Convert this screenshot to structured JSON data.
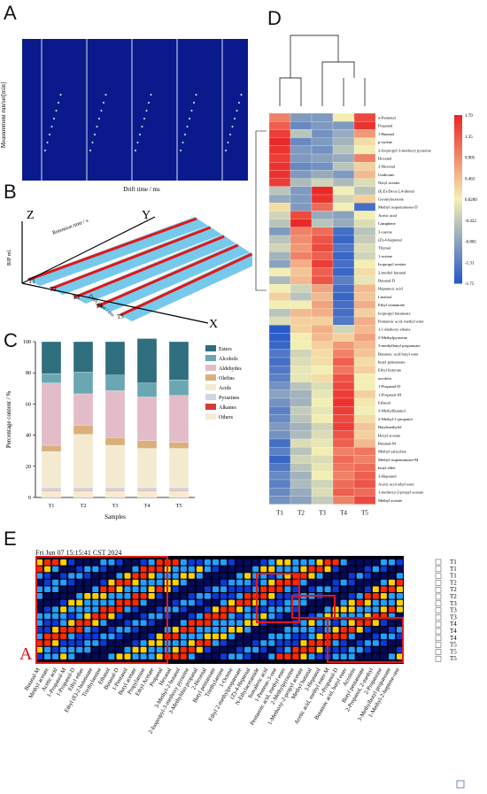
{
  "panels": {
    "a": "A",
    "b": "B",
    "c": "C",
    "d": "D",
    "e": "E"
  },
  "panel_a": {
    "ylabel": "Measurement run/set[min]",
    "xlabel": "Drift time / ms",
    "colors": {
      "bg": "#0a1a8c",
      "line": "#e8e8ff"
    }
  },
  "panel_b": {
    "z": "Z",
    "y": "Y",
    "x": "X",
    "zlabel": "RIP rel.",
    "retention": "Retention time / s",
    "drift": "Drift time / ms",
    "samples": [
      "T1",
      "T2",
      "T3",
      "T4",
      "T5"
    ]
  },
  "panel_e": {
    "timestamp": "Fri Jun 07 15:15:41 CST 2024",
    "a_marker": "A",
    "rows": [
      "T1",
      "T1",
      "T1",
      "T2",
      "T2",
      "T2",
      "T3",
      "T3",
      "T3",
      "T4",
      "T4",
      "T4",
      "T5",
      "T5",
      "T5"
    ],
    "compounds": [
      "Butanal-M",
      "Methyl acetate",
      "Acetic acid",
      "1-Propanol-M",
      "1-Propanol-D",
      "Ethyl ether",
      "Ethyl (E)-2-butenoate",
      "Tricthylamine",
      "Ethanol",
      "Butanal-D",
      "1-Pentanol",
      "Butyl acetate",
      "Propylamine",
      "Ethyl Acetate",
      "Propanal",
      "Hexanal",
      "3-Methyl-2-butanol",
      "2-Isopropyl-3-methoxy pyrazine",
      "3-Methylthio propanal",
      "2-Hexenal",
      "Butyl pentanoate",
      "Triethylamine",
      "1-Octene",
      "Ethyl 2-methylpropanoate",
      "(Z)-4-Heptenal",
      "N-Ethylacetamide",
      "Isovaleric acid",
      "1-Pentene-3-one",
      "Pentanoic acid, methyl ester",
      "2-Methylpyrazine",
      "1-Methoxy-2-propyl acetate",
      "Methyl butanal",
      "3-Heptanol",
      "Acetic acid, methyl ester-M",
      "1-Propanol-D",
      "Butanoic acid, butyl ester",
      "Acrolein",
      "Butyl pentanoate",
      "2-Propanol, 2-methyl",
      "2-Propanone",
      "3-Methylbutyl propanoate",
      "1-Methyl-2-heptene-one"
    ]
  },
  "chart_data": [
    {
      "type": "bar",
      "stacked": true,
      "title": "",
      "xlabel": "Samples",
      "ylabel": "Percentage content / %",
      "ylim": [
        0,
        100
      ],
      "yticks": [
        0,
        20,
        40,
        60,
        80,
        100
      ],
      "categories": [
        "T1",
        "T2",
        "T3",
        "T4",
        "T5"
      ],
      "legend_position": "right",
      "series": [
        {
          "name": "Others",
          "color": "#f6ead0",
          "values": [
            4,
            4,
            4,
            4,
            4
          ]
        },
        {
          "name": "Alkanes",
          "color": "#d33c3c",
          "values": [
            0.5,
            0.5,
            0.5,
            0.5,
            0.5
          ]
        },
        {
          "name": "Pyrazines",
          "color": "#cfd7dd",
          "values": [
            2,
            2,
            2,
            2,
            2
          ]
        },
        {
          "name": "Acids",
          "color": "#f3ead0",
          "values": [
            23,
            34,
            27,
            25,
            25
          ]
        },
        {
          "name": "Olefins",
          "color": "#d9b07a",
          "values": [
            4,
            6,
            5,
            5,
            4
          ]
        },
        {
          "name": "Aldehydes",
          "color": "#e2bcc8",
          "values": [
            40,
            20,
            30,
            28,
            30
          ]
        },
        {
          "name": "Alcohols",
          "color": "#6aa7b2",
          "values": [
            6,
            14,
            10,
            9,
            10
          ]
        },
        {
          "name": "Esters",
          "color": "#2f6e7c",
          "values": [
            20.5,
            19.5,
            21.5,
            28.5,
            24.5
          ]
        }
      ]
    },
    {
      "type": "heatmap",
      "columns": [
        "T1",
        "T2",
        "T3",
        "T4",
        "T5"
      ],
      "rows": [
        "α-Pentenal",
        "Propanal",
        "1-Butanol",
        "p-xylene",
        "2-Isopropyl-3-methoxy pyrazine",
        "Hexanal",
        "2-Hexenal",
        "Undecane",
        "Neryl acetate",
        "(E,E)-Deca-2,4-dienal",
        "Geranylacetone",
        "Methyl isopentanoate-D",
        "Acetic acid",
        "Camphene",
        "3-carene",
        "(Z)-4-heptenal",
        "Thymol",
        "1-octene",
        "Isopropyl acetate",
        "2-methyl butanal",
        "Butanal-D",
        "Heptanoic acid",
        "Linalool",
        "Ethyl cinnamate",
        "Isopropyl butanoate",
        "Pentanoic acid, methyl ester",
        "1,1-diethoxy ethane",
        "2-Methylpyrazine",
        "3-methylbutyl propanoate",
        "Butanoic acid butyl ester",
        "butyl pentanoate",
        "Ethyl butyrate",
        "acrolein",
        "1-Propanol-D",
        "1-Propanol-M",
        "Ethanol",
        "3-Methylbutanol",
        "2-Methyl-1-propanol",
        "Butylmethylol",
        "Hexyl acetate",
        "Butanal-M",
        "Methyl salicylate",
        "Methyl isopentanoate-M",
        "butyl ether",
        "3-Heptanol",
        "Acetic acid ethyl ester",
        "1-methoxy-2-propyl acetate",
        "Methyl acetate"
      ],
      "colorbar_ticks": [
        "1.79",
        "1.35",
        "0.905",
        "0.463",
        "0.0200",
        "-0.422",
        "-0.865",
        "-1.31",
        "-1.75"
      ],
      "colorbar_range": [
        -1.75,
        1.79
      ],
      "values": [
        [
          1.0,
          -1.0,
          -1.0,
          0.0,
          1.5
        ],
        [
          1.3,
          -1.2,
          -1.0,
          -1.0,
          1.7
        ],
        [
          1.6,
          -0.5,
          -1.1,
          -0.8,
          0.8
        ],
        [
          1.79,
          -1.2,
          -1.0,
          -0.7,
          0.2
        ],
        [
          1.7,
          -1.0,
          -1.1,
          -0.5,
          0.0
        ],
        [
          1.6,
          -1.0,
          -0.9,
          -0.8,
          1.0
        ],
        [
          1.7,
          -1.2,
          -1.1,
          -0.5,
          0.3
        ],
        [
          1.7,
          -1.0,
          -0.8,
          -1.0,
          0.5
        ],
        [
          1.6,
          -0.6,
          -0.3,
          -0.6,
          -0.2
        ],
        [
          -0.5,
          -1.0,
          1.79,
          0.0,
          -0.5
        ],
        [
          -0.8,
          -1.0,
          1.7,
          -0.3,
          0.3
        ],
        [
          0.2,
          -1.0,
          1.2,
          0.0,
          -1.5
        ],
        [
          -0.3,
          1.5,
          -0.8,
          -0.9,
          0.0
        ],
        [
          -0.5,
          1.79,
          -0.5,
          -0.8,
          -0.2
        ],
        [
          -1.0,
          1.0,
          1.2,
          -1.5,
          -0.5
        ],
        [
          -0.5,
          0.9,
          1.4,
          -1.6,
          -0.4
        ],
        [
          -0.3,
          0.8,
          1.5,
          -1.4,
          -0.2
        ],
        [
          -0.7,
          1.0,
          1.3,
          -1.6,
          -0.3
        ],
        [
          -0.9,
          0.6,
          1.6,
          -1.5,
          0.0
        ],
        [
          0.0,
          0.4,
          1.3,
          -1.6,
          0.2
        ],
        [
          -0.6,
          0.5,
          1.4,
          -1.3,
          -0.1
        ],
        [
          0.0,
          -0.3,
          0.7,
          -1.5,
          0.5
        ],
        [
          0.3,
          -0.5,
          0.5,
          -1.6,
          0.4
        ],
        [
          0.0,
          0.0,
          0.7,
          -1.5,
          0.6
        ],
        [
          -0.5,
          0.5,
          0.6,
          -1.5,
          0.3
        ],
        [
          -0.2,
          0.3,
          0.3,
          -1.4,
          0.6
        ],
        [
          -1.75,
          0.3,
          0.6,
          -0.3,
          0.5
        ],
        [
          -1.7,
          0.0,
          0.5,
          0.3,
          0.7
        ],
        [
          -1.6,
          0.0,
          0.3,
          0.8,
          0.5
        ],
        [
          -1.4,
          -0.3,
          0.2,
          1.0,
          0.4
        ],
        [
          -1.5,
          -0.2,
          0.2,
          1.3,
          0.2
        ],
        [
          -1.4,
          -0.1,
          0.0,
          1.1,
          0.3
        ],
        [
          -1.3,
          -0.1,
          0.2,
          1.4,
          0.0
        ],
        [
          -1.1,
          -0.5,
          -0.2,
          1.5,
          0.0
        ],
        [
          -0.9,
          -0.7,
          -0.1,
          1.6,
          0.3
        ],
        [
          -1.1,
          -0.7,
          0.0,
          1.7,
          0.1
        ],
        [
          -1.3,
          -0.4,
          -0.1,
          1.6,
          0.0
        ],
        [
          -1.2,
          -0.5,
          0.0,
          1.5,
          0.2
        ],
        [
          -1.0,
          -0.7,
          -0.3,
          1.6,
          0.4
        ],
        [
          -1.1,
          -0.6,
          -0.2,
          1.4,
          0.3
        ],
        [
          -1.5,
          -0.2,
          -0.1,
          1.3,
          0.5
        ],
        [
          -1.3,
          -0.5,
          0.0,
          1.0,
          1.1
        ],
        [
          -1.6,
          -0.3,
          -0.2,
          1.2,
          1.0
        ],
        [
          -1.4,
          -0.5,
          -0.1,
          1.1,
          1.2
        ],
        [
          -1.2,
          -0.7,
          0.0,
          1.0,
          1.3
        ],
        [
          -1.3,
          -0.6,
          -0.3,
          1.2,
          1.4
        ],
        [
          -1.2,
          -0.8,
          -0.2,
          1.3,
          1.2
        ],
        [
          -1.1,
          -0.9,
          -0.4,
          1.0,
          1.5
        ]
      ]
    }
  ]
}
